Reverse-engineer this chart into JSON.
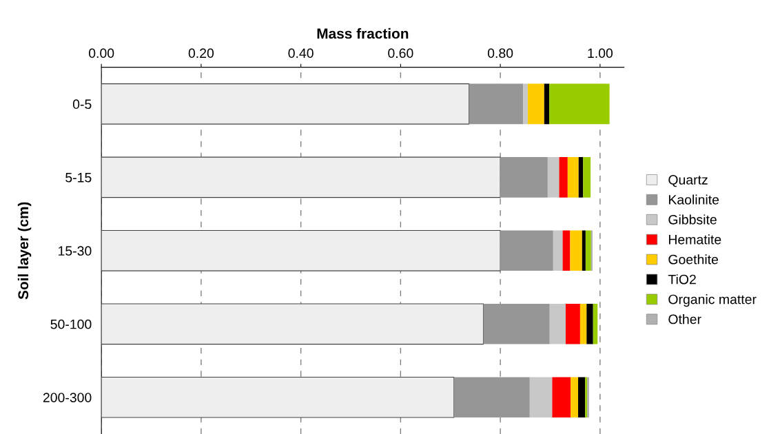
{
  "chart_data": {
    "type": "bar",
    "orientation": "horizontal",
    "stacked": true,
    "xlabel": "Mass fraction",
    "ylabel": "Soil layer (cm)",
    "categories": [
      "0-5",
      "5-15",
      "15-30",
      "50-100",
      "200-300"
    ],
    "series": [
      {
        "name": "Quartz",
        "color": "#eeeeee",
        "values": [
          0.737,
          0.8,
          0.8,
          0.766,
          0.707
        ]
      },
      {
        "name": "Kaolinite",
        "color": "#969696",
        "values": [
          0.109,
          0.095,
          0.106,
          0.133,
          0.152
        ]
      },
      {
        "name": "Gibbsite",
        "color": "#c8c8c8",
        "values": [
          0.009,
          0.023,
          0.019,
          0.032,
          0.045
        ]
      },
      {
        "name": "Hematite",
        "color": "#ff0000",
        "values": [
          0,
          0.017,
          0.015,
          0.029,
          0.037
        ]
      },
      {
        "name": "Goethite",
        "color": "#ffcc00",
        "values": [
          0.033,
          0.022,
          0.024,
          0.013,
          0.015
        ]
      },
      {
        "name": "TiO2",
        "color": "#000000",
        "values": [
          0.01,
          0.009,
          0.007,
          0.013,
          0.014
        ]
      },
      {
        "name": "Organic matter",
        "color": "#99cc00",
        "values": [
          0.121,
          0.015,
          0.011,
          0.009,
          0.004
        ]
      },
      {
        "name": "Other",
        "color": "#b0b0b0",
        "values": [
          0,
          0,
          0.003,
          0,
          0.004
        ]
      }
    ],
    "xlim": [
      0,
      1.048
    ],
    "xticks": [
      {
        "value": 0,
        "label": "0.00"
      },
      {
        "value": 0.2,
        "label": "0.20"
      },
      {
        "value": 0.4,
        "label": "0.40"
      },
      {
        "value": 0.6,
        "label": "0.60"
      },
      {
        "value": 0.8,
        "label": "0.80"
      },
      {
        "value": 1.0,
        "label": "1.00"
      }
    ],
    "grid": "x",
    "legend": "right"
  }
}
